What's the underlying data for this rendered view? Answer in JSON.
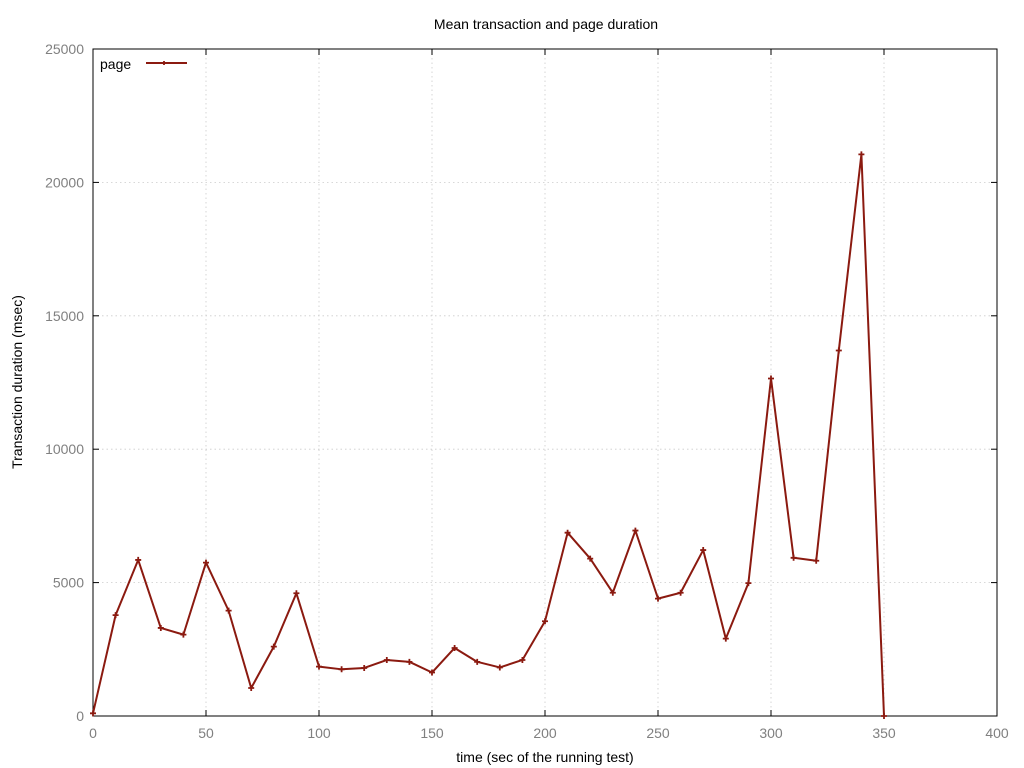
{
  "chart_data": {
    "type": "line",
    "title": "Mean transaction and page duration",
    "xlabel": "time (sec of the running test)",
    "ylabel": "Transaction duration (msec)",
    "xlim": [
      0,
      400
    ],
    "ylim": [
      0,
      25000
    ],
    "x_ticks": [
      0,
      50,
      100,
      150,
      200,
      250,
      300,
      350,
      400
    ],
    "y_ticks": [
      0,
      5000,
      10000,
      15000,
      20000,
      25000
    ],
    "grid": true,
    "legend_position": "top-left",
    "series": [
      {
        "name": "page",
        "color": "#8B1A10",
        "x": [
          0,
          10,
          20,
          30,
          40,
          50,
          60,
          70,
          80,
          90,
          100,
          110,
          120,
          130,
          140,
          150,
          160,
          170,
          180,
          190,
          200,
          210,
          220,
          230,
          240,
          250,
          260,
          270,
          280,
          290,
          300,
          310,
          320,
          330,
          340,
          350
        ],
        "values": [
          100,
          3780,
          5850,
          3300,
          3050,
          5750,
          3950,
          1050,
          2600,
          4600,
          1850,
          1750,
          1800,
          2100,
          2030,
          1630,
          2550,
          2030,
          1820,
          2100,
          3550,
          6870,
          5900,
          4620,
          6950,
          4400,
          4620,
          6220,
          2900,
          4980,
          12650,
          5930,
          5820,
          13700,
          21050,
          0
        ]
      }
    ]
  }
}
